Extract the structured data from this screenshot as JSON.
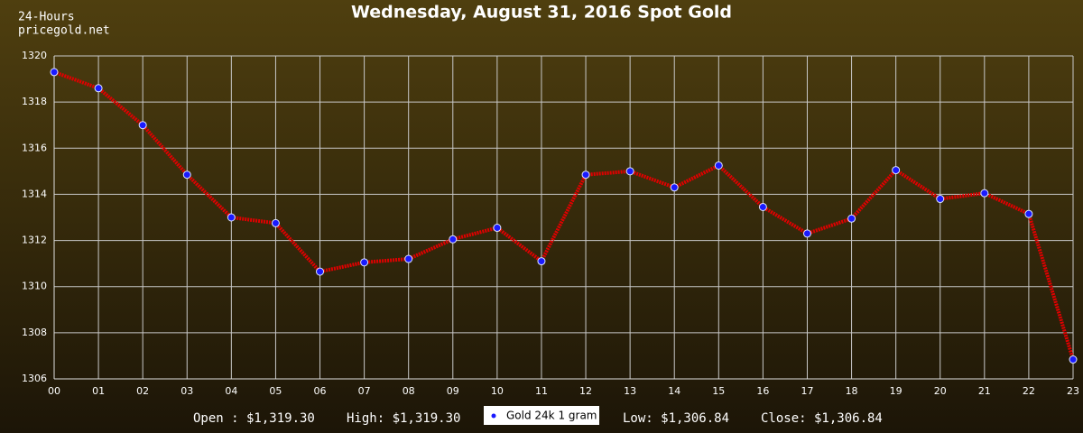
{
  "chart_data": {
    "type": "line",
    "title": "Wednesday, August 31, 2016 Spot Gold",
    "corner_labels": [
      "24-Hours",
      "pricegold.net"
    ],
    "categories": [
      "00",
      "01",
      "02",
      "03",
      "04",
      "05",
      "06",
      "07",
      "08",
      "09",
      "10",
      "11",
      "12",
      "13",
      "14",
      "15",
      "16",
      "17",
      "18",
      "19",
      "20",
      "21",
      "22",
      "23"
    ],
    "series": [
      {
        "name": "Gold 24k 1 gram",
        "color": "#e00000",
        "marker_color": "#1a1aff",
        "values": [
          1319.3,
          1318.6,
          1317.0,
          1314.85,
          1313.0,
          1312.75,
          1310.65,
          1311.05,
          1311.2,
          1312.05,
          1312.55,
          1311.1,
          1314.85,
          1315.0,
          1314.3,
          1315.25,
          1313.45,
          1312.3,
          1312.95,
          1315.05,
          1313.8,
          1314.05,
          1313.15,
          1306.84
        ]
      }
    ],
    "ylim": [
      1306,
      1320
    ],
    "yticks": [
      1306,
      1308,
      1310,
      1312,
      1314,
      1316,
      1318,
      1320
    ],
    "grid": true,
    "footer": {
      "open": "Open : $1,319.30",
      "high": "High: $1,319.30",
      "low": "Low: $1,306.84",
      "close": "Close: $1,306.84"
    }
  }
}
